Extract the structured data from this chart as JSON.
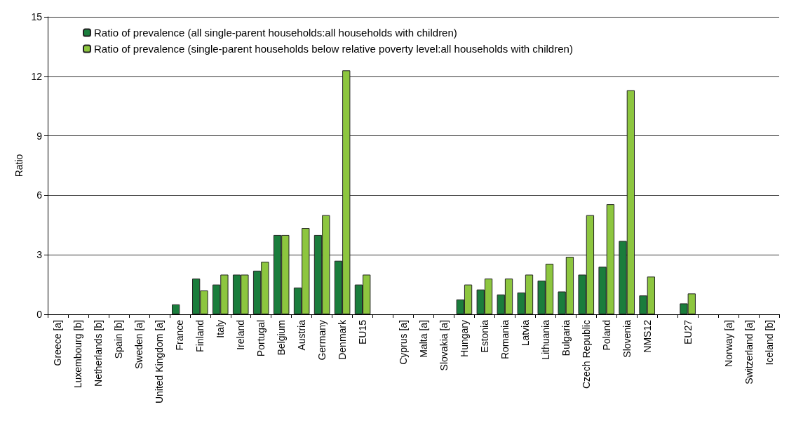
{
  "chart_data": {
    "type": "bar",
    "ylabel": "Ratio",
    "categories": [
      "Greece [a]",
      "Luxembourg [b]",
      "Netherlands [b]",
      "Spain [b]",
      "Sweden [a]",
      "United Kingdom [a]",
      "France",
      "Finland",
      "Italy",
      "Ireland",
      "Portugal",
      "Belgium",
      "Austria",
      "Germany",
      "Denmark",
      "EU15",
      null,
      "Cyprus [a]",
      "Malta [a]",
      "Slovakia [a]",
      "Hungary",
      "Estonia",
      "Romania",
      "Latvia",
      "Lithuania",
      "Bulgaria",
      "Czech Republic",
      "Poland",
      "Slovenia",
      "NMS12",
      null,
      "EU27",
      null,
      "Norway [a]",
      "Switzerland [a]",
      "Iceland [b]"
    ],
    "series": [
      {
        "name": "Ratio of prevalence (all single-parent households:all households with children)",
        "color": "#1a7d3c",
        "values": [
          null,
          null,
          null,
          null,
          null,
          null,
          0.5,
          1.8,
          1.5,
          2.0,
          2.2,
          4.0,
          1.35,
          4.0,
          2.7,
          1.5,
          null,
          null,
          null,
          null,
          0.75,
          1.25,
          1.0,
          1.1,
          1.7,
          1.15,
          2.0,
          2.4,
          3.7,
          0.95,
          null,
          0.55,
          null,
          null,
          null,
          null
        ]
      },
      {
        "name": "Ratio of prevalence (single-parent households below relative poverty level:all households with children)",
        "color": "#8dc63f",
        "values": [
          null,
          null,
          null,
          null,
          null,
          null,
          null,
          1.2,
          2.0,
          2.0,
          2.65,
          4.0,
          4.35,
          5.0,
          12.3,
          2.0,
          null,
          null,
          null,
          null,
          1.5,
          1.8,
          1.8,
          2.0,
          2.55,
          2.9,
          5.0,
          5.55,
          11.3,
          1.9,
          null,
          1.05,
          null,
          null,
          null,
          null
        ]
      }
    ],
    "ylim": [
      0,
      15
    ],
    "yticks": [
      0,
      3,
      6,
      9,
      12,
      15
    ],
    "grid": "y",
    "legend": "top left"
  }
}
